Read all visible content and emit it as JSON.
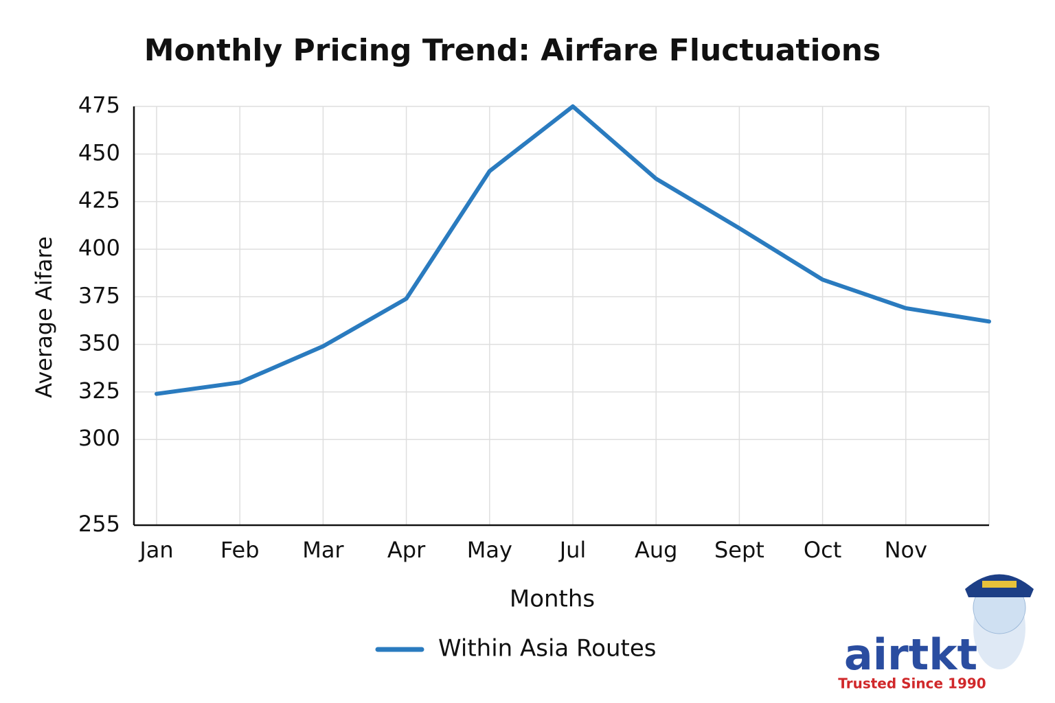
{
  "chart_data": {
    "type": "line",
    "title": "Monthly Pricing Trend: Airfare Fluctuations",
    "x_label": "Months",
    "y_label": "Average Aifare",
    "categories": [
      "Jan",
      "Feb",
      "Mar",
      "Apr",
      "May",
      "Jul",
      "Aug",
      "Sept",
      "Oct",
      "Nov",
      null
    ],
    "series": [
      {
        "name": "Within Asia Routes",
        "color": "#2a7bbf",
        "values": [
          324,
          330,
          349,
          374,
          441,
          475,
          437,
          411,
          384,
          369,
          362
        ]
      }
    ],
    "ylim": [
      255,
      475
    ],
    "yticks": [
      255,
      300,
      325,
      350,
      375,
      400,
      425,
      450,
      475
    ],
    "grid": true,
    "legend": "bottom"
  },
  "logo": {
    "brand": "airtkt",
    "tagline": "Trusted Since 1990"
  }
}
